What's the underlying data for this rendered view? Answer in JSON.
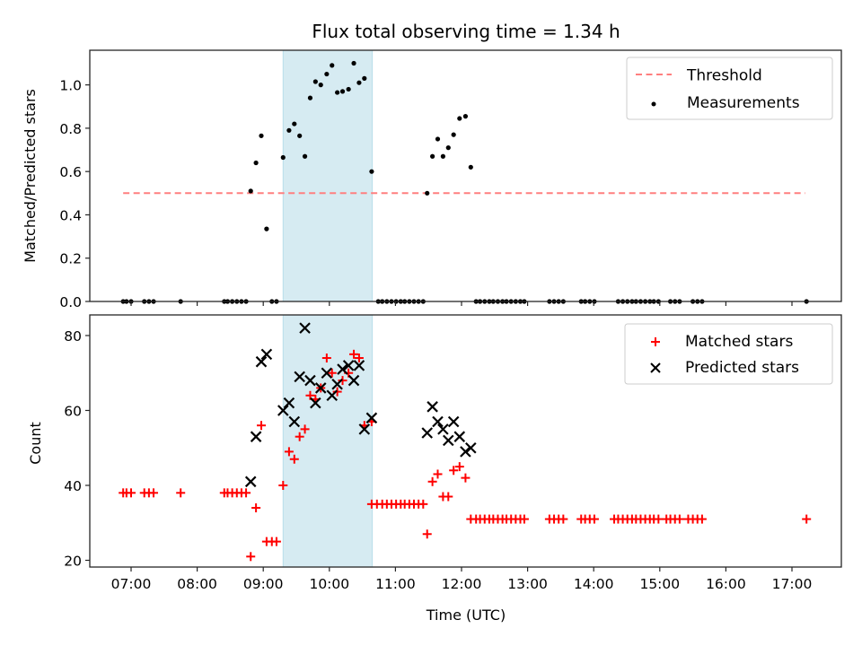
{
  "chart_data": [
    {
      "type": "scatter",
      "title": "Flux total observing time = 1.34 h",
      "xlabel": "",
      "ylabel": "Matched/Predicted stars",
      "ylim": [
        0,
        1.16
      ],
      "xlim_hours": [
        6.45,
        17.85
      ],
      "yticks": [
        "0.0",
        "0.2",
        "0.4",
        "0.6",
        "0.8",
        "1.0"
      ],
      "ytick_values": [
        0,
        0.2,
        0.4,
        0.6,
        0.8,
        1.0
      ],
      "legend_position": "top-right",
      "legend": [
        {
          "label": "Threshold",
          "kind": "dashed-line",
          "color": "#ff7f7f"
        },
        {
          "label": "Measurements",
          "kind": "dot",
          "color": "#000000"
        }
      ],
      "threshold": {
        "value": 0.5,
        "x_start_hours": 6.88,
        "x_end_hours": 17.2,
        "color": "#ff7f7f"
      },
      "highlight_span_hours": [
        9.3,
        10.65
      ],
      "highlight_color": "#add8e6",
      "series": [
        {
          "name": "Measurements",
          "color": "#000000",
          "x_hours": [
            6.88,
            6.93,
            7.0,
            7.2,
            7.27,
            7.34,
            7.75,
            8.41,
            8.46,
            8.53,
            8.6,
            8.67,
            8.74,
            8.81,
            8.89,
            8.97,
            9.05,
            9.13,
            9.2,
            9.3,
            9.39,
            9.47,
            9.55,
            9.63,
            9.71,
            9.79,
            9.87,
            9.96,
            10.04,
            10.12,
            10.2,
            10.29,
            10.37,
            10.45,
            10.53,
            10.64,
            10.74,
            10.8,
            10.87,
            10.94,
            11.01,
            11.08,
            11.14,
            11.21,
            11.28,
            11.35,
            11.42,
            11.48,
            11.56,
            11.64,
            11.72,
            11.8,
            11.88,
            11.97,
            12.06,
            12.14,
            12.22,
            12.28,
            12.35,
            12.42,
            12.48,
            12.55,
            12.62,
            12.68,
            12.75,
            12.82,
            12.89,
            12.95,
            13.33,
            13.4,
            13.47,
            13.54,
            13.81,
            13.87,
            13.94,
            14.01,
            14.37,
            14.44,
            14.51,
            14.58,
            14.64,
            14.71,
            14.78,
            14.85,
            14.91,
            14.98,
            15.16,
            15.23,
            15.3,
            15.5,
            15.57,
            15.64,
            17.22
          ],
          "y": [
            0,
            0,
            0,
            0,
            0,
            0,
            0,
            0,
            0,
            0,
            0,
            0,
            0,
            0.51,
            0.64,
            0.765,
            0.335,
            0,
            0,
            0.665,
            0.79,
            0.82,
            0.765,
            0.67,
            0.94,
            1.015,
            1.0,
            1.05,
            1.09,
            0.965,
            0.97,
            0.98,
            1.1,
            1.01,
            1.03,
            0.6,
            0,
            0,
            0,
            0,
            0,
            0,
            0,
            0,
            0,
            0,
            0,
            0.5,
            0.67,
            0.75,
            0.67,
            0.71,
            0.77,
            0.845,
            0.855,
            0.62,
            0,
            0,
            0,
            0,
            0,
            0,
            0,
            0,
            0,
            0,
            0,
            0,
            0,
            0,
            0,
            0,
            0,
            0,
            0,
            0,
            0,
            0,
            0,
            0,
            0,
            0,
            0,
            0,
            0,
            0,
            0,
            0,
            0,
            0,
            0,
            0,
            0
          ]
        }
      ]
    },
    {
      "type": "scatter",
      "title": "",
      "xlabel": "Time (UTC)",
      "ylabel": "Count",
      "ylim": [
        18.2,
        85.5
      ],
      "xlim_hours": [
        6.45,
        17.85
      ],
      "yticks": [
        "20",
        "40",
        "60",
        "80"
      ],
      "ytick_values": [
        20,
        40,
        60,
        80
      ],
      "xticks": [
        "07:00",
        "08:00",
        "09:00",
        "10:00",
        "11:00",
        "12:00",
        "13:00",
        "14:00",
        "15:00",
        "16:00",
        "17:00"
      ],
      "xtick_values_hours": [
        7,
        8,
        9,
        10,
        11,
        12,
        13,
        14,
        15,
        16,
        17
      ],
      "legend_position": "top-right",
      "legend": [
        {
          "label": "Matched stars",
          "kind": "plus",
          "color": "#ff0000"
        },
        {
          "label": "Predicted stars",
          "kind": "x",
          "color": "#000000"
        }
      ],
      "highlight_span_hours": [
        9.3,
        10.65
      ],
      "highlight_color": "#add8e6",
      "series": [
        {
          "name": "Matched stars",
          "marker": "plus",
          "color": "#ff0000",
          "points": [
            [
              6.88,
              38
            ],
            [
              6.93,
              38
            ],
            [
              7.0,
              38
            ],
            [
              7.2,
              38
            ],
            [
              7.27,
              38
            ],
            [
              7.34,
              38
            ],
            [
              7.75,
              38
            ],
            [
              8.41,
              38
            ],
            [
              8.46,
              38
            ],
            [
              8.53,
              38
            ],
            [
              8.6,
              38
            ],
            [
              8.67,
              38
            ],
            [
              8.74,
              38
            ],
            [
              8.81,
              21
            ],
            [
              8.89,
              34
            ],
            [
              8.97,
              56
            ],
            [
              9.05,
              25
            ],
            [
              9.13,
              25
            ],
            [
              9.2,
              25
            ],
            [
              9.3,
              40
            ],
            [
              9.39,
              49
            ],
            [
              9.47,
              47
            ],
            [
              9.55,
              53
            ],
            [
              9.63,
              55
            ],
            [
              9.71,
              64
            ],
            [
              9.79,
              63
            ],
            [
              9.87,
              66
            ],
            [
              9.96,
              74
            ],
            [
              10.04,
              70
            ],
            [
              10.12,
              65
            ],
            [
              10.2,
              68
            ],
            [
              10.29,
              70
            ],
            [
              10.37,
              75
            ],
            [
              10.45,
              74
            ],
            [
              10.53,
              56
            ],
            [
              10.64,
              57
            ],
            [
              10.64,
              35
            ],
            [
              10.72,
              35
            ],
            [
              10.8,
              35
            ],
            [
              10.87,
              35
            ],
            [
              10.94,
              35
            ],
            [
              11.01,
              35
            ],
            [
              11.08,
              35
            ],
            [
              11.14,
              35
            ],
            [
              11.21,
              35
            ],
            [
              11.28,
              35
            ],
            [
              11.35,
              35
            ],
            [
              11.42,
              35
            ],
            [
              11.48,
              27
            ],
            [
              11.56,
              41
            ],
            [
              11.64,
              43
            ],
            [
              11.72,
              37
            ],
            [
              11.8,
              37
            ],
            [
              11.88,
              44
            ],
            [
              11.97,
              45
            ],
            [
              12.06,
              42
            ],
            [
              12.14,
              31
            ],
            [
              12.22,
              31
            ],
            [
              12.28,
              31
            ],
            [
              12.35,
              31
            ],
            [
              12.42,
              31
            ],
            [
              12.48,
              31
            ],
            [
              12.55,
              31
            ],
            [
              12.62,
              31
            ],
            [
              12.68,
              31
            ],
            [
              12.75,
              31
            ],
            [
              12.82,
              31
            ],
            [
              12.89,
              31
            ],
            [
              12.95,
              31
            ],
            [
              13.33,
              31
            ],
            [
              13.4,
              31
            ],
            [
              13.47,
              31
            ],
            [
              13.54,
              31
            ],
            [
              13.81,
              31
            ],
            [
              13.87,
              31
            ],
            [
              13.94,
              31
            ],
            [
              14.01,
              31
            ],
            [
              14.31,
              31
            ],
            [
              14.37,
              31
            ],
            [
              14.44,
              31
            ],
            [
              14.51,
              31
            ],
            [
              14.58,
              31
            ],
            [
              14.64,
              31
            ],
            [
              14.71,
              31
            ],
            [
              14.78,
              31
            ],
            [
              14.85,
              31
            ],
            [
              14.91,
              31
            ],
            [
              14.98,
              31
            ],
            [
              15.1,
              31
            ],
            [
              15.16,
              31
            ],
            [
              15.23,
              31
            ],
            [
              15.3,
              31
            ],
            [
              15.43,
              31
            ],
            [
              15.5,
              31
            ],
            [
              15.57,
              31
            ],
            [
              15.64,
              31
            ],
            [
              17.22,
              31
            ]
          ]
        },
        {
          "name": "Predicted stars",
          "marker": "x",
          "color": "#000000",
          "points": [
            [
              8.81,
              41
            ],
            [
              8.89,
              53
            ],
            [
              8.97,
              73
            ],
            [
              9.05,
              75
            ],
            [
              9.3,
              60
            ],
            [
              9.39,
              62
            ],
            [
              9.47,
              57
            ],
            [
              9.55,
              69
            ],
            [
              9.63,
              82
            ],
            [
              9.71,
              68
            ],
            [
              9.79,
              62
            ],
            [
              9.87,
              66
            ],
            [
              9.96,
              70
            ],
            [
              10.04,
              64
            ],
            [
              10.12,
              67
            ],
            [
              10.2,
              71
            ],
            [
              10.29,
              72
            ],
            [
              10.37,
              68
            ],
            [
              10.45,
              72
            ],
            [
              10.53,
              55
            ],
            [
              10.64,
              58
            ],
            [
              11.48,
              54
            ],
            [
              11.56,
              61
            ],
            [
              11.64,
              57
            ],
            [
              11.72,
              55
            ],
            [
              11.8,
              52
            ],
            [
              11.88,
              57
            ],
            [
              11.97,
              53
            ],
            [
              12.06,
              49
            ],
            [
              12.14,
              50
            ]
          ]
        }
      ]
    }
  ]
}
